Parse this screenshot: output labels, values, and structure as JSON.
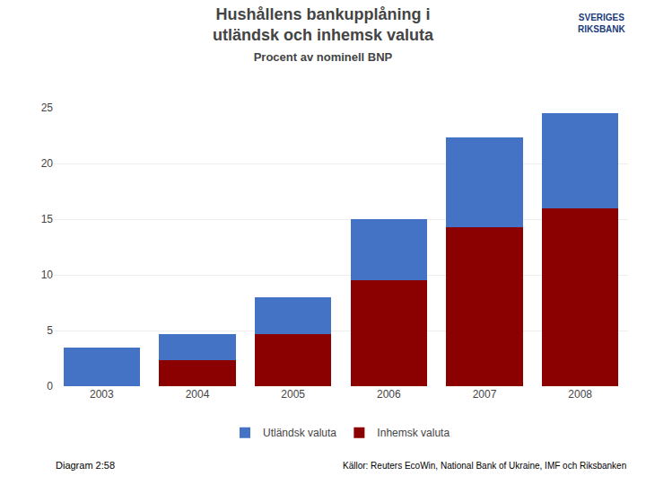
{
  "chart_data": {
    "type": "bar",
    "title": "Hushållens bankupplåning i\nutländsk och inhemsk valuta",
    "subtitle": "Procent av nominell BNP",
    "categories": [
      "2003",
      "2004",
      "2005",
      "2006",
      "2007",
      "2008"
    ],
    "series": [
      {
        "name": "Inhemsk valuta",
        "color": "#8B0000",
        "values": [
          0.0,
          2.3,
          4.7,
          9.5,
          14.3,
          16.0
        ]
      },
      {
        "name": "Utländsk valuta",
        "color": "#4472C4",
        "values": [
          3.5,
          2.4,
          3.3,
          5.5,
          8.0,
          8.5
        ]
      }
    ],
    "stacked": true,
    "ylim": [
      0,
      25
    ],
    "yticks": [
      0,
      5,
      10,
      15,
      20,
      25
    ],
    "grid": true,
    "legend": "bottom",
    "annotations": [
      "Diagram 2:58",
      "Källor: Reuters EcoWin, National Bank of Ukraine, IMF och Riksbanken",
      "SVERIGES\nRIKSBANK"
    ]
  }
}
